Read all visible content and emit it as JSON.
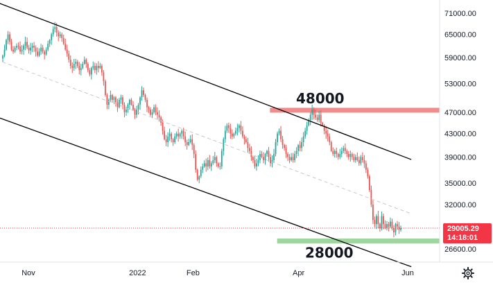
{
  "chart_data": {
    "type": "candlestick",
    "title": "",
    "xlabel": "",
    "ylabel": "",
    "scale": "log",
    "ylim": [
      25500,
      75000
    ],
    "y_ticks": [
      71000,
      65000,
      59000,
      53000,
      47000,
      43000,
      39000,
      35000,
      32000,
      26600
    ],
    "y_tick_labels": [
      "71000.00",
      "65000.00",
      "59000.00",
      "53000.00",
      "47000.00",
      "43000.00",
      "39000.00",
      "35000.00",
      "32000.00",
      "26600.00"
    ],
    "x_range": [
      "2021-10-10",
      "2022-06-10"
    ],
    "x_ticks": [
      {
        "date": "2021-11-01",
        "label": "Nov"
      },
      {
        "date": "2022-01-01",
        "label": "2022"
      },
      {
        "date": "2022-02-01",
        "label": "Feb"
      },
      {
        "date": "2022-04-01",
        "label": "Apr"
      },
      {
        "date": "2022-06-01",
        "label": "Jun"
      }
    ],
    "last_price": {
      "value": 29005.29,
      "label": "29005.29",
      "countdown": "14:18:01",
      "color": "#f23645"
    },
    "colors": {
      "up": "#26a69a",
      "down": "#ef5350",
      "channel": "#000000",
      "midline": "#c8c8c8",
      "resistance_zone": "#f28b8b",
      "support_zone": "#9fd69f"
    },
    "zones": [
      {
        "name": "resistance",
        "value": 47400,
        "start": "2022-03-16",
        "label": "48000",
        "color": "#f28b8b"
      },
      {
        "name": "support",
        "value": 27500,
        "start": "2022-03-20",
        "label": "28000",
        "color": "#9fd69f"
      }
    ],
    "channel_lines": [
      {
        "name": "upper",
        "start": [
          "2021-10-11",
          75000
        ],
        "end": [
          "2022-06-03",
          38600
        ]
      },
      {
        "name": "lower",
        "start": [
          "2021-10-11",
          46500
        ],
        "end": [
          "2022-06-03",
          24700
        ]
      },
      {
        "name": "mid",
        "start": [
          "2021-10-11",
          59000
        ],
        "end": [
          "2022-06-03",
          30800
        ],
        "style": "dashed"
      }
    ],
    "closes": [
      59500,
      61000,
      63500,
      65000,
      63000,
      61000,
      60500,
      61500,
      62000,
      61800,
      60500,
      61000,
      62000,
      63000,
      61500,
      60800,
      61500,
      62000,
      61500,
      60500,
      59500,
      60500,
      61500,
      60500,
      59800,
      61000,
      62500,
      63500,
      65000,
      66500,
      67000,
      65500,
      64500,
      65000,
      64000,
      62500,
      61000,
      60000,
      58500,
      57000,
      56500,
      57500,
      58000,
      57000,
      56000,
      56500,
      57500,
      58500,
      57500,
      56000,
      55000,
      56500,
      57000,
      56000,
      57000,
      56500,
      57000,
      55500,
      53500,
      50500,
      48500,
      49500,
      50500,
      49500,
      50000,
      49000,
      48000,
      49500,
      50000,
      48500,
      47000,
      47500,
      48500,
      49500,
      48500,
      47500,
      46500,
      47500,
      48500,
      50000,
      51500,
      50500,
      49500,
      48000,
      47500,
      46500,
      47000,
      48000,
      47000,
      46500,
      46000,
      45000,
      43500,
      42000,
      41500,
      42500,
      43000,
      42000,
      41500,
      42500,
      43000,
      42500,
      43000,
      43500,
      42500,
      41500,
      41000,
      41500,
      42000,
      41000,
      39500,
      37000,
      35500,
      36000,
      37000,
      37500,
      38000,
      37500,
      38500,
      37500,
      38000,
      38500,
      39000,
      38000,
      37500,
      37500,
      40000,
      42000,
      43500,
      44500,
      44000,
      43000,
      42500,
      43000,
      43500,
      44000,
      44500,
      43500,
      42500,
      42000,
      41500,
      40500,
      40000,
      39000,
      38500,
      37500,
      38000,
      38500,
      39500,
      39000,
      38500,
      39500,
      40000,
      39000,
      38000,
      38500,
      39500,
      41500,
      43000,
      43500,
      42000,
      41000,
      40500,
      39500,
      39000,
      38500,
      39000,
      38500,
      39500,
      40000,
      41000,
      40500,
      41500,
      42500,
      43500,
      44500,
      45500,
      46500,
      47500,
      46500,
      46000,
      45500,
      46500,
      45000,
      44500,
      43500,
      43000,
      42500,
      41500,
      40000,
      39500,
      40000,
      39500,
      39000,
      39500,
      40000,
      40500,
      40000,
      39500,
      39000,
      39500,
      39000,
      38500,
      39000,
      38500,
      38000,
      39000,
      38500,
      38000,
      37000,
      36000,
      34000,
      32000,
      30000,
      29500,
      30500,
      29500,
      29000,
      30500,
      29500,
      29000,
      29500,
      29200,
      29800,
      29000,
      28500,
      29500,
      29200,
      28800,
      29005
    ]
  }
}
